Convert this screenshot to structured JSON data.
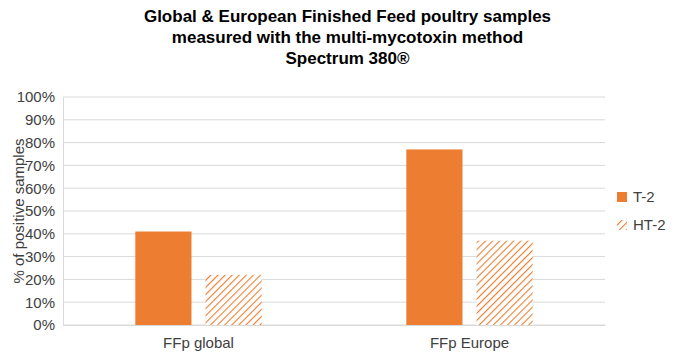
{
  "chart_data": {
    "type": "bar",
    "title": [
      "Global & European Finished Feed poultry samples",
      "measured with the multi-mycotoxin method",
      "Spectrum 380®"
    ],
    "y_label": "% of positive samples",
    "categories": [
      "FFp global",
      "FFp Europe"
    ],
    "series": [
      {
        "name": "T-2",
        "color": "#ed7d31",
        "line_style": "solid",
        "values": [
          41,
          77
        ]
      },
      {
        "name": "HT-2",
        "color": "#ed7d31",
        "line_style": "hatched",
        "values": [
          22,
          37
        ]
      }
    ],
    "ylim": [
      0,
      100
    ],
    "yticks": [
      {
        "value": 0,
        "label": "0%"
      },
      {
        "value": 10,
        "label": "10%"
      },
      {
        "value": 20,
        "label": "20%"
      },
      {
        "value": 30,
        "label": "30%"
      },
      {
        "value": 40,
        "label": "40%"
      },
      {
        "value": 50,
        "label": "50%"
      },
      {
        "value": 60,
        "label": "60%"
      },
      {
        "value": 70,
        "label": "70%"
      },
      {
        "value": 80,
        "label": "80%"
      },
      {
        "value": 90,
        "label": "90%"
      },
      {
        "value": 100,
        "label": "100%"
      }
    ],
    "grid": true,
    "legend": "right"
  }
}
